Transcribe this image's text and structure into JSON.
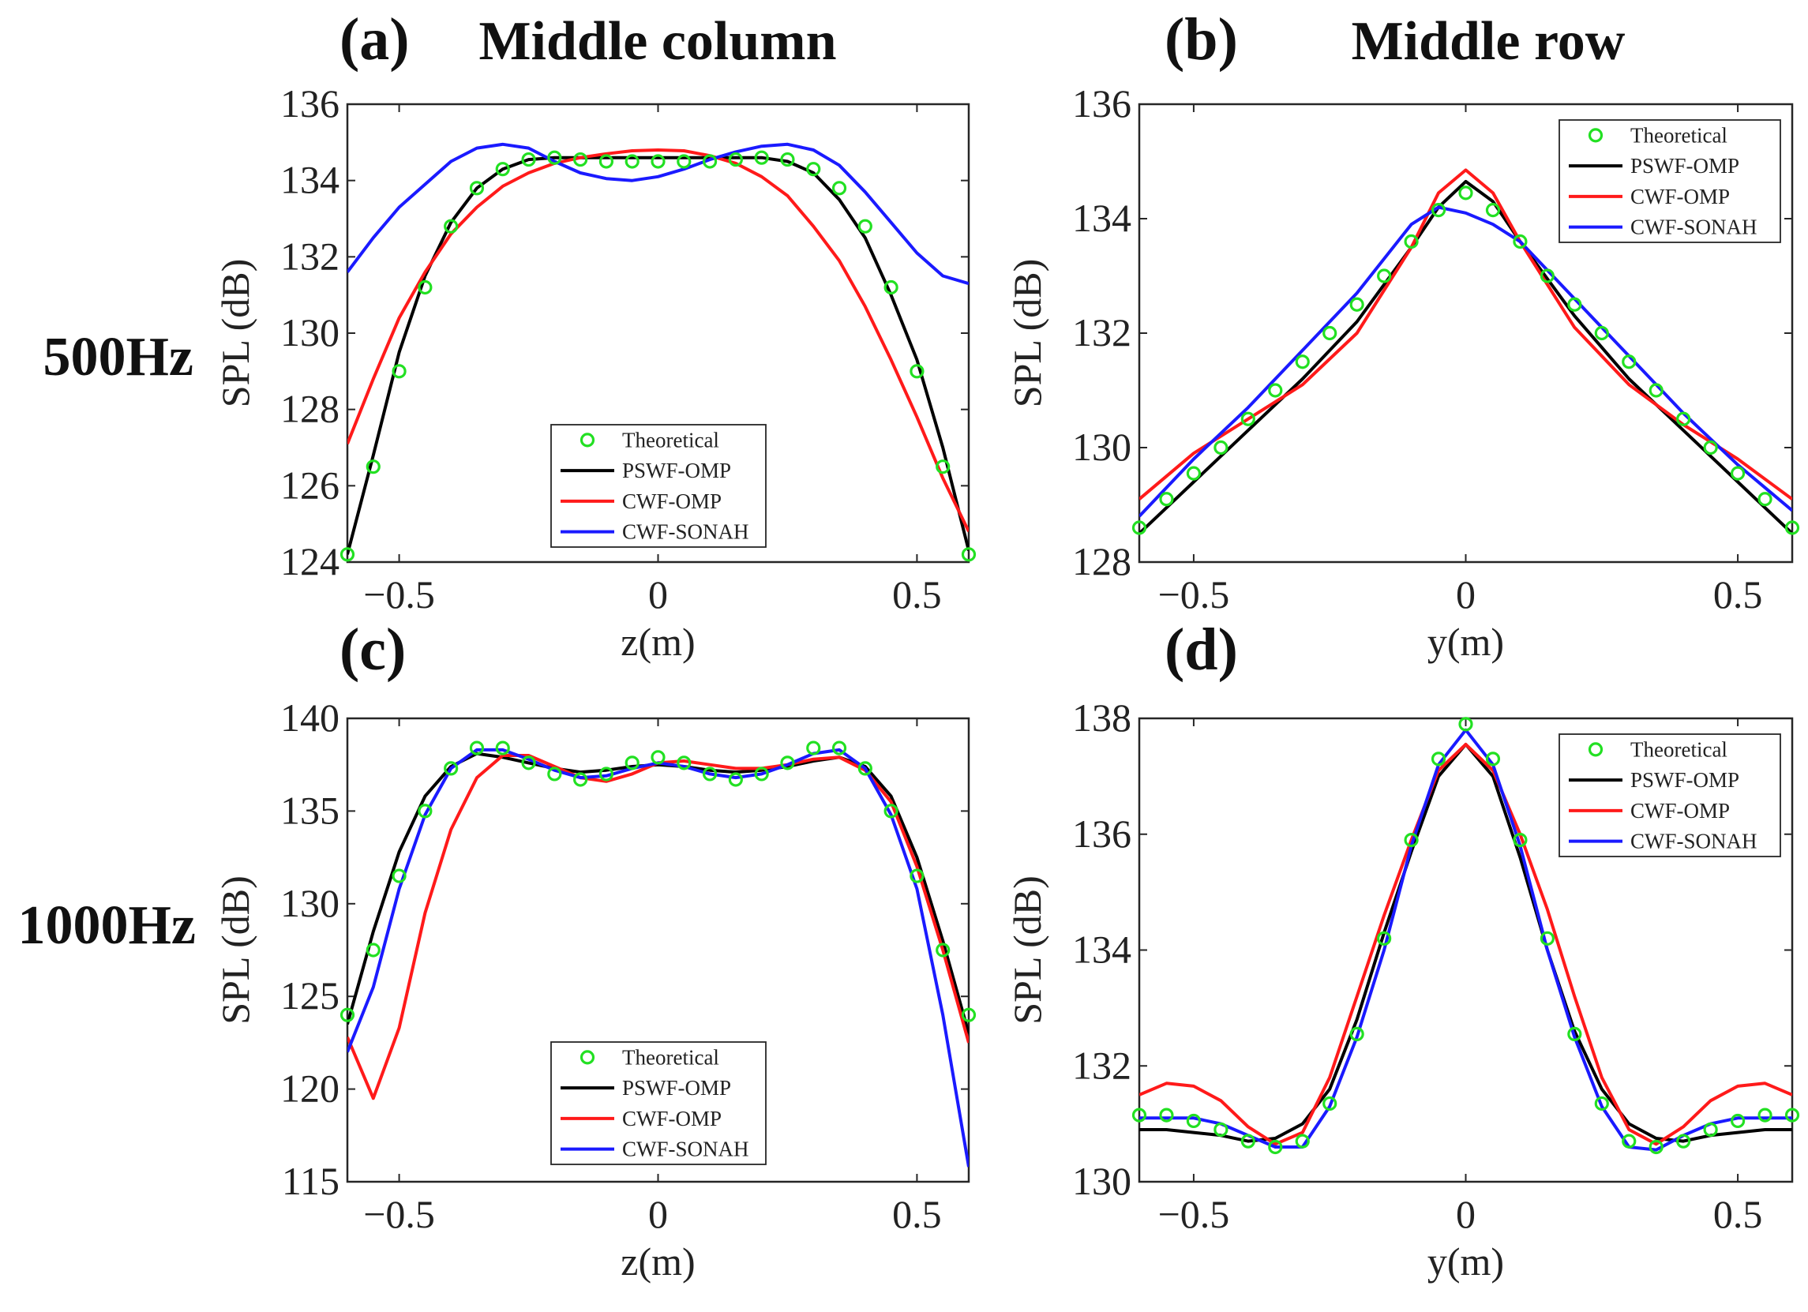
{
  "figure": {
    "column_titles": [
      "Middle column",
      "Middle row"
    ],
    "row_labels": [
      "500Hz",
      "1000Hz"
    ],
    "colors": {
      "Theoretical": "#22e022",
      "PSWF-OMP": "#000000",
      "CWF-OMP": "#ff1a1a",
      "CWF-SONAH": "#1a1aff"
    }
  },
  "chart_data": [
    {
      "panel": "(a)",
      "type": "line",
      "xlabel": "z(m)",
      "ylabel": "SPL (dB)",
      "xlim": [
        -0.6,
        0.6
      ],
      "ylim": [
        124,
        136
      ],
      "xticks": [
        -0.5,
        0,
        0.5
      ],
      "xtick_labels": [
        "−0.5",
        "0",
        "0.5"
      ],
      "yticks": [
        124,
        126,
        128,
        130,
        132,
        134,
        136
      ],
      "legend": "bottom-center",
      "series": [
        {
          "name": "Theoretical",
          "style": "markers",
          "x": [
            -0.6,
            -0.55,
            -0.5,
            -0.45,
            -0.4,
            -0.35,
            -0.3,
            -0.25,
            -0.2,
            -0.15,
            -0.1,
            -0.05,
            0,
            0.05,
            0.1,
            0.15,
            0.2,
            0.25,
            0.3,
            0.35,
            0.4,
            0.45,
            0.5,
            0.55,
            0.6
          ],
          "y": [
            124.2,
            126.5,
            129.0,
            131.2,
            132.8,
            133.8,
            134.3,
            134.55,
            134.6,
            134.55,
            134.5,
            134.5,
            134.5,
            134.5,
            134.5,
            134.55,
            134.6,
            134.55,
            134.3,
            133.8,
            132.8,
            131.2,
            129.0,
            126.5,
            124.2
          ]
        },
        {
          "name": "PSWF-OMP",
          "style": "line",
          "x": [
            -0.6,
            -0.55,
            -0.5,
            -0.45,
            -0.4,
            -0.35,
            -0.3,
            -0.25,
            -0.2,
            -0.15,
            -0.1,
            -0.05,
            0,
            0.05,
            0.1,
            0.15,
            0.2,
            0.25,
            0.3,
            0.35,
            0.4,
            0.45,
            0.5,
            0.55,
            0.6
          ],
          "y": [
            124.2,
            126.8,
            129.5,
            131.5,
            132.9,
            133.8,
            134.3,
            134.55,
            134.6,
            134.6,
            134.6,
            134.6,
            134.6,
            134.6,
            134.6,
            134.6,
            134.6,
            134.5,
            134.2,
            133.5,
            132.5,
            131.0,
            129.3,
            127.0,
            124.3
          ]
        },
        {
          "name": "CWF-OMP",
          "style": "line",
          "x": [
            -0.6,
            -0.55,
            -0.5,
            -0.45,
            -0.4,
            -0.35,
            -0.3,
            -0.25,
            -0.2,
            -0.15,
            -0.1,
            -0.05,
            0,
            0.05,
            0.1,
            0.15,
            0.2,
            0.25,
            0.3,
            0.35,
            0.4,
            0.45,
            0.5,
            0.55,
            0.6
          ],
          "y": [
            127.1,
            128.8,
            130.4,
            131.6,
            132.6,
            133.3,
            133.85,
            134.2,
            134.45,
            134.6,
            134.7,
            134.78,
            134.8,
            134.78,
            134.65,
            134.45,
            134.1,
            133.6,
            132.8,
            131.9,
            130.7,
            129.3,
            127.8,
            126.2,
            124.8
          ]
        },
        {
          "name": "CWF-SONAH",
          "style": "line",
          "x": [
            -0.6,
            -0.55,
            -0.5,
            -0.45,
            -0.4,
            -0.35,
            -0.3,
            -0.25,
            -0.2,
            -0.15,
            -0.1,
            -0.05,
            0,
            0.05,
            0.1,
            0.15,
            0.2,
            0.25,
            0.3,
            0.35,
            0.4,
            0.45,
            0.5,
            0.55,
            0.6
          ],
          "y": [
            131.6,
            132.5,
            133.3,
            133.9,
            134.5,
            134.85,
            134.95,
            134.85,
            134.5,
            134.2,
            134.05,
            134.0,
            134.1,
            134.3,
            134.55,
            134.75,
            134.9,
            134.95,
            134.8,
            134.4,
            133.7,
            132.9,
            132.1,
            131.5,
            131.3
          ]
        }
      ]
    },
    {
      "panel": "(b)",
      "type": "line",
      "xlabel": "y(m)",
      "ylabel": "SPL (dB)",
      "xlim": [
        -0.6,
        0.6
      ],
      "ylim": [
        128,
        136
      ],
      "xticks": [
        -0.5,
        0,
        0.5
      ],
      "xtick_labels": [
        "−0.5",
        "0",
        "0.5"
      ],
      "yticks": [
        128,
        130,
        132,
        134,
        136
      ],
      "legend": "top-right",
      "series": [
        {
          "name": "Theoretical",
          "style": "markers",
          "x": [
            -0.6,
            -0.55,
            -0.5,
            -0.45,
            -0.4,
            -0.35,
            -0.3,
            -0.25,
            -0.2,
            -0.15,
            -0.1,
            -0.05,
            0,
            0.05,
            0.1,
            0.15,
            0.2,
            0.25,
            0.3,
            0.35,
            0.4,
            0.45,
            0.5,
            0.55,
            0.6
          ],
          "y": [
            128.6,
            129.1,
            129.55,
            130.0,
            130.5,
            131.0,
            131.5,
            132.0,
            132.5,
            133.0,
            133.6,
            134.15,
            134.45,
            134.15,
            133.6,
            133.0,
            132.5,
            132.0,
            131.5,
            131.0,
            130.5,
            130.0,
            129.55,
            129.1,
            128.6
          ]
        },
        {
          "name": "PSWF-OMP",
          "style": "line",
          "x": [
            -0.6,
            -0.5,
            -0.4,
            -0.3,
            -0.2,
            -0.1,
            -0.05,
            0,
            0.05,
            0.1,
            0.2,
            0.3,
            0.4,
            0.5,
            0.6
          ],
          "y": [
            128.5,
            129.4,
            130.3,
            131.2,
            132.2,
            133.5,
            134.2,
            134.65,
            134.3,
            133.6,
            132.3,
            131.2,
            130.3,
            129.4,
            128.5
          ]
        },
        {
          "name": "CWF-OMP",
          "style": "line",
          "x": [
            -0.6,
            -0.5,
            -0.4,
            -0.3,
            -0.2,
            -0.1,
            -0.05,
            0,
            0.05,
            0.1,
            0.2,
            0.3,
            0.4,
            0.5,
            0.6
          ],
          "y": [
            129.1,
            129.9,
            130.5,
            131.1,
            132.0,
            133.5,
            134.45,
            134.85,
            134.45,
            133.6,
            132.1,
            131.1,
            130.4,
            129.8,
            129.1
          ]
        },
        {
          "name": "CWF-SONAH",
          "style": "line",
          "x": [
            -0.6,
            -0.5,
            -0.4,
            -0.3,
            -0.2,
            -0.1,
            -0.05,
            0,
            0.05,
            0.1,
            0.2,
            0.3,
            0.4,
            0.5,
            0.6
          ],
          "y": [
            128.8,
            129.8,
            130.7,
            131.7,
            132.7,
            133.9,
            134.2,
            134.1,
            133.9,
            133.6,
            132.6,
            131.6,
            130.6,
            129.7,
            128.9
          ]
        }
      ]
    },
    {
      "panel": "(c)",
      "type": "line",
      "xlabel": "z(m)",
      "ylabel": "SPL (dB)",
      "xlim": [
        -0.6,
        0.6
      ],
      "ylim": [
        115,
        140
      ],
      "xticks": [
        -0.5,
        0,
        0.5
      ],
      "xtick_labels": [
        "−0.5",
        "0",
        "0.5"
      ],
      "yticks": [
        115,
        120,
        125,
        130,
        135,
        140
      ],
      "legend": "bottom-center",
      "series": [
        {
          "name": "Theoretical",
          "style": "markers",
          "x": [
            -0.6,
            -0.55,
            -0.5,
            -0.45,
            -0.4,
            -0.35,
            -0.3,
            -0.25,
            -0.2,
            -0.15,
            -0.1,
            -0.05,
            0,
            0.05,
            0.1,
            0.15,
            0.2,
            0.25,
            0.3,
            0.35,
            0.4,
            0.45,
            0.5,
            0.55,
            0.6
          ],
          "y": [
            124.0,
            127.5,
            131.5,
            135.0,
            137.3,
            138.4,
            138.4,
            137.6,
            137.0,
            136.7,
            137.0,
            137.6,
            137.9,
            137.6,
            137.0,
            136.7,
            137.0,
            137.6,
            138.4,
            138.4,
            137.3,
            135.0,
            131.5,
            127.5,
            124.0
          ]
        },
        {
          "name": "PSWF-OMP",
          "style": "line",
          "x": [
            -0.6,
            -0.55,
            -0.5,
            -0.45,
            -0.4,
            -0.35,
            -0.3,
            -0.25,
            -0.2,
            -0.15,
            -0.1,
            -0.05,
            0,
            0.05,
            0.1,
            0.15,
            0.2,
            0.25,
            0.3,
            0.35,
            0.4,
            0.45,
            0.5,
            0.55,
            0.6
          ],
          "y": [
            123.5,
            128.5,
            132.8,
            135.8,
            137.4,
            138.1,
            137.9,
            137.6,
            137.3,
            137.1,
            137.2,
            137.4,
            137.5,
            137.4,
            137.2,
            137.1,
            137.2,
            137.4,
            137.7,
            137.9,
            137.4,
            135.8,
            132.5,
            128.0,
            123.0
          ]
        },
        {
          "name": "CWF-OMP",
          "style": "line",
          "x": [
            -0.6,
            -0.55,
            -0.5,
            -0.45,
            -0.4,
            -0.35,
            -0.3,
            -0.25,
            -0.2,
            -0.15,
            -0.1,
            -0.05,
            0,
            0.05,
            0.1,
            0.15,
            0.2,
            0.25,
            0.3,
            0.35,
            0.4,
            0.45,
            0.5,
            0.55,
            0.6
          ],
          "y": [
            122.8,
            119.5,
            123.3,
            129.5,
            134.0,
            136.8,
            138.0,
            138.0,
            137.4,
            136.8,
            136.6,
            137.0,
            137.6,
            137.7,
            137.5,
            137.3,
            137.3,
            137.5,
            137.8,
            137.9,
            137.2,
            135.5,
            132.0,
            127.5,
            122.5
          ]
        },
        {
          "name": "CWF-SONAH",
          "style": "line",
          "x": [
            -0.6,
            -0.55,
            -0.5,
            -0.45,
            -0.4,
            -0.35,
            -0.3,
            -0.25,
            -0.2,
            -0.15,
            -0.1,
            -0.05,
            0,
            0.05,
            0.1,
            0.15,
            0.2,
            0.25,
            0.3,
            0.35,
            0.4,
            0.45,
            0.5,
            0.55,
            0.6
          ],
          "y": [
            122.0,
            125.5,
            130.8,
            134.8,
            137.3,
            138.3,
            138.3,
            137.8,
            137.2,
            136.8,
            136.9,
            137.3,
            137.6,
            137.4,
            137.0,
            136.8,
            137.0,
            137.5,
            138.1,
            138.3,
            137.3,
            134.8,
            130.8,
            124.0,
            115.8
          ]
        }
      ]
    },
    {
      "panel": "(d)",
      "type": "line",
      "xlabel": "y(m)",
      "ylabel": "SPL (dB)",
      "xlim": [
        -0.6,
        0.6
      ],
      "ylim": [
        130,
        138
      ],
      "xticks": [
        -0.5,
        0,
        0.5
      ],
      "xtick_labels": [
        "−0.5",
        "0",
        "0.5"
      ],
      "yticks": [
        130,
        132,
        134,
        136,
        138
      ],
      "legend": "top-right",
      "series": [
        {
          "name": "Theoretical",
          "style": "markers",
          "x": [
            -0.6,
            -0.55,
            -0.5,
            -0.45,
            -0.4,
            -0.35,
            -0.3,
            -0.25,
            -0.2,
            -0.15,
            -0.1,
            -0.05,
            0,
            0.05,
            0.1,
            0.15,
            0.2,
            0.25,
            0.3,
            0.35,
            0.4,
            0.45,
            0.5,
            0.55,
            0.6
          ],
          "y": [
            131.15,
            131.15,
            131.05,
            130.9,
            130.7,
            130.6,
            130.7,
            131.35,
            132.55,
            134.2,
            135.9,
            137.3,
            137.9,
            137.3,
            135.9,
            134.2,
            132.55,
            131.35,
            130.7,
            130.6,
            130.7,
            130.9,
            131.05,
            131.15,
            131.15
          ]
        },
        {
          "name": "PSWF-OMP",
          "style": "line",
          "x": [
            -0.6,
            -0.55,
            -0.5,
            -0.45,
            -0.4,
            -0.35,
            -0.3,
            -0.25,
            -0.2,
            -0.15,
            -0.1,
            -0.05,
            0,
            0.05,
            0.1,
            0.15,
            0.2,
            0.25,
            0.3,
            0.35,
            0.4,
            0.45,
            0.5,
            0.55,
            0.6
          ],
          "y": [
            130.9,
            130.9,
            130.85,
            130.8,
            130.7,
            130.75,
            131.0,
            131.6,
            132.8,
            134.3,
            135.7,
            137.0,
            137.55,
            137.0,
            135.6,
            134.0,
            132.6,
            131.6,
            131.0,
            130.75,
            130.7,
            130.8,
            130.85,
            130.9,
            130.9
          ]
        },
        {
          "name": "CWF-OMP",
          "style": "line",
          "x": [
            -0.6,
            -0.55,
            -0.5,
            -0.45,
            -0.4,
            -0.35,
            -0.3,
            -0.25,
            -0.2,
            -0.15,
            -0.1,
            -0.05,
            0,
            0.05,
            0.1,
            0.15,
            0.2,
            0.25,
            0.3,
            0.35,
            0.4,
            0.45,
            0.5,
            0.55,
            0.6
          ],
          "y": [
            131.5,
            131.7,
            131.65,
            131.4,
            130.95,
            130.65,
            130.85,
            131.8,
            133.2,
            134.6,
            135.9,
            137.1,
            137.55,
            137.1,
            136.0,
            134.7,
            133.2,
            131.8,
            130.9,
            130.65,
            130.95,
            131.4,
            131.65,
            131.7,
            131.5
          ]
        },
        {
          "name": "CWF-SONAH",
          "style": "line",
          "x": [
            -0.6,
            -0.55,
            -0.5,
            -0.45,
            -0.4,
            -0.35,
            -0.3,
            -0.25,
            -0.2,
            -0.15,
            -0.1,
            -0.05,
            0,
            0.05,
            0.1,
            0.15,
            0.2,
            0.25,
            0.3,
            0.35,
            0.4,
            0.45,
            0.5,
            0.55,
            0.6
          ],
          "y": [
            131.1,
            131.1,
            131.1,
            131.0,
            130.8,
            130.6,
            130.6,
            131.3,
            132.5,
            134.0,
            135.8,
            137.2,
            137.8,
            137.2,
            135.8,
            134.0,
            132.5,
            131.3,
            130.6,
            130.55,
            130.8,
            131.0,
            131.1,
            131.1,
            131.1
          ]
        }
      ]
    }
  ]
}
